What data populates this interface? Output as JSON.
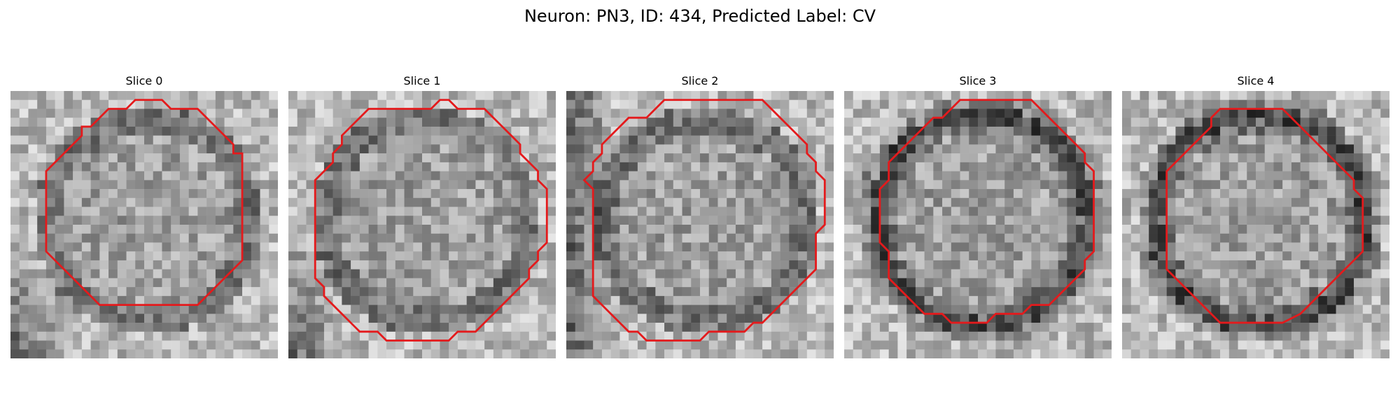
{
  "figure": {
    "suptitle": "Neuron: PN3, ID: 434, Predicted Label: CV",
    "contour_color": "#e41a1c",
    "panels": [
      {
        "title": "Slice 0",
        "seed": 11,
        "dark": "left-bottom"
      },
      {
        "title": "Slice 1",
        "seed": 29,
        "dark": "left-bottom"
      },
      {
        "title": "Slice 2",
        "seed": 47,
        "dark": "left"
      },
      {
        "title": "Slice 3",
        "seed": 63,
        "dark": "ring"
      },
      {
        "title": "Slice 4",
        "seed": 85,
        "dark": "ring"
      }
    ]
  }
}
